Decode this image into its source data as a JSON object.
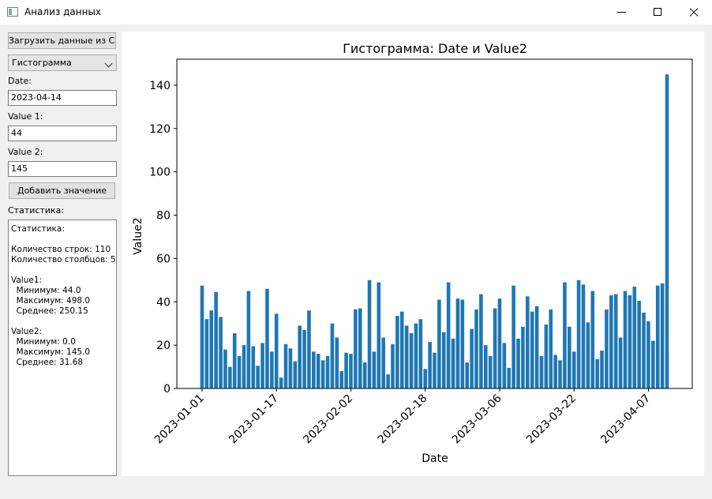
{
  "window": {
    "title": "Анализ данных"
  },
  "controls": {
    "load_button": "Загрузить данные из CSV",
    "plot_type": "Гистограмма",
    "date_label": "Date:",
    "date_value": "2023-04-14",
    "value1_label": "Value 1:",
    "value1_value": "44",
    "value2_label": "Value 2:",
    "value2_value": "145",
    "add_button": "Добавить значение",
    "stats_label": "Статистика:",
    "stats_text": "Статистика:\n\nКоличество строк: 110\nКоличество столбцов: 5\n\nValue1:\n  Минимум: 44.0\n  Максимум: 498.0\n  Среднее: 250.15\n\nValue2:\n  Минимум: 0.0\n  Максимум: 145.0\n  Среднее: 31.68"
  },
  "chart_data": {
    "type": "bar",
    "title": "Гистограмма: Date и Value2",
    "xlabel": "Date",
    "ylabel": "Value2",
    "start_date": "2023-01-01",
    "ylim": [
      0,
      152
    ],
    "yticks": [
      0,
      20,
      40,
      60,
      80,
      100,
      120,
      140
    ],
    "xticks": [
      "2023-01-01",
      "2023-01-17",
      "2023-02-02",
      "2023-02-18",
      "2023-03-06",
      "2023-03-22",
      "2023-04-07"
    ],
    "xtick_index": [
      0,
      16,
      32,
      48,
      64,
      80,
      96
    ],
    "bar_color": "#1f77b4",
    "values": [
      47.5,
      32,
      36,
      44.5,
      33,
      18,
      10,
      25.5,
      15,
      20,
      45,
      19.5,
      10.5,
      21,
      46,
      17,
      34.5,
      5,
      20.5,
      18.5,
      12.5,
      29,
      27,
      36,
      17,
      16,
      13,
      15,
      30,
      23.5,
      8,
      16.5,
      16,
      36.5,
      37,
      12,
      50,
      17,
      49,
      23.5,
      6.5,
      20.5,
      33.5,
      35.5,
      29,
      25.5,
      30,
      32,
      9,
      21.5,
      16.5,
      41,
      26,
      49,
      23,
      41.5,
      41,
      12,
      27.5,
      36.5,
      43.5,
      20,
      15,
      37,
      41.5,
      21,
      9.5,
      47.5,
      23,
      28.5,
      42.5,
      35.5,
      38,
      15,
      29.5,
      36.5,
      15.5,
      13,
      49,
      28.5,
      17,
      50,
      48,
      30.5,
      45,
      13.5,
      17.5,
      36.5,
      43,
      43.5,
      23.5,
      45,
      43,
      47,
      40.5,
      35,
      31,
      22,
      47.5,
      48.5,
      145
    ]
  }
}
